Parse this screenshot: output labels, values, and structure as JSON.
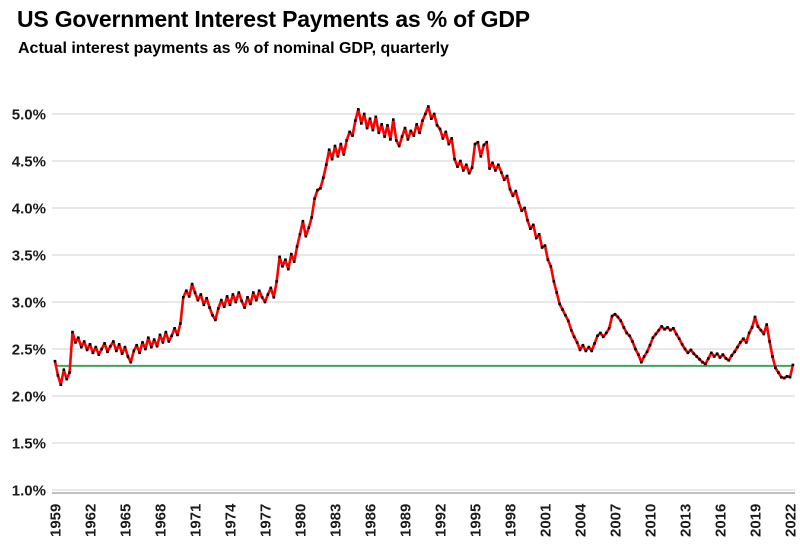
{
  "header": {
    "title": "US Government Interest Payments as % of GDP",
    "subtitle": "Actual interest payments as % of nominal GDP, quarterly"
  },
  "chart_data": {
    "type": "line",
    "title": "US Government Interest Payments as % of GDP",
    "subtitle": "Actual interest payments as % of nominal GDP, quarterly",
    "frequency": "quarterly",
    "unit": "percent of nominal GDP",
    "x_start": 1959,
    "x_step": 0.25,
    "x_tick_years": [
      1959,
      1962,
      1965,
      1968,
      1971,
      1974,
      1977,
      1980,
      1983,
      1986,
      1989,
      1992,
      1995,
      1998,
      2001,
      2004,
      2007,
      2010,
      2013,
      2016,
      2019,
      2022
    ],
    "y_ticks": [
      5.0,
      4.5,
      4.0,
      3.5,
      3.0,
      2.5,
      2.0,
      1.5,
      1.0
    ],
    "y_tick_labels": [
      "5.0%",
      "4.5%",
      "4.0%",
      "3.5%",
      "3.0%",
      "2.5%",
      "2.0%",
      "1.5%",
      "1.0%"
    ],
    "ylim": [
      1.0,
      5.0
    ],
    "grid": true,
    "gridline_color": "#d9d9d9",
    "axis_line_color": "#ababab",
    "label_color": "#1a1a1a",
    "reference_line": {
      "value": 2.32,
      "color": "#3fa45e"
    },
    "series": [
      {
        "name": "Actual interest payments as % of nominal GDP",
        "color": "#ff0000",
        "marker_color": "#000000",
        "values": [
          2.37,
          2.22,
          2.12,
          2.28,
          2.18,
          2.25,
          2.68,
          2.57,
          2.62,
          2.52,
          2.58,
          2.49,
          2.55,
          2.46,
          2.52,
          2.44,
          2.5,
          2.56,
          2.47,
          2.53,
          2.58,
          2.48,
          2.55,
          2.45,
          2.52,
          2.42,
          2.36,
          2.48,
          2.54,
          2.46,
          2.57,
          2.5,
          2.62,
          2.52,
          2.6,
          2.53,
          2.65,
          2.57,
          2.68,
          2.58,
          2.64,
          2.72,
          2.65,
          2.77,
          3.05,
          3.12,
          3.06,
          3.19,
          3.1,
          3.02,
          3.08,
          2.97,
          3.04,
          2.94,
          2.86,
          2.81,
          2.93,
          3.02,
          2.95,
          3.06,
          2.97,
          3.08,
          3.0,
          3.1,
          3.01,
          2.94,
          3.05,
          2.98,
          3.1,
          3.02,
          3.12,
          3.05,
          3.0,
          3.08,
          3.15,
          3.05,
          3.22,
          3.48,
          3.38,
          3.45,
          3.35,
          3.51,
          3.43,
          3.59,
          3.72,
          3.86,
          3.7,
          3.79,
          3.9,
          4.1,
          4.19,
          4.21,
          4.32,
          4.46,
          4.62,
          4.52,
          4.66,
          4.55,
          4.68,
          4.57,
          4.72,
          4.81,
          4.77,
          4.93,
          5.05,
          4.9,
          5.0,
          4.85,
          4.95,
          4.83,
          4.97,
          4.8,
          4.89,
          4.76,
          4.88,
          4.73,
          4.94,
          4.72,
          4.66,
          4.76,
          4.85,
          4.73,
          4.82,
          4.77,
          4.89,
          4.8,
          4.93,
          5.0,
          5.08,
          4.95,
          5.0,
          4.88,
          4.84,
          4.74,
          4.81,
          4.68,
          4.74,
          4.52,
          4.44,
          4.5,
          4.4,
          4.46,
          4.37,
          4.43,
          4.68,
          4.7,
          4.55,
          4.67,
          4.7,
          4.42,
          4.48,
          4.4,
          4.46,
          4.38,
          4.3,
          4.34,
          4.2,
          4.13,
          4.18,
          4.06,
          3.97,
          4.0,
          3.87,
          3.78,
          3.82,
          3.68,
          3.72,
          3.58,
          3.6,
          3.45,
          3.38,
          3.22,
          3.1,
          2.98,
          2.92,
          2.86,
          2.8,
          2.7,
          2.63,
          2.57,
          2.49,
          2.54,
          2.48,
          2.52,
          2.48,
          2.56,
          2.64,
          2.67,
          2.63,
          2.67,
          2.72,
          2.85,
          2.87,
          2.84,
          2.8,
          2.73,
          2.67,
          2.64,
          2.58,
          2.5,
          2.44,
          2.36,
          2.42,
          2.47,
          2.54,
          2.62,
          2.66,
          2.7,
          2.74,
          2.71,
          2.73,
          2.7,
          2.72,
          2.66,
          2.61,
          2.55,
          2.5,
          2.46,
          2.49,
          2.45,
          2.42,
          2.39,
          2.36,
          2.34,
          2.4,
          2.46,
          2.42,
          2.45,
          2.41,
          2.44,
          2.4,
          2.38,
          2.43,
          2.47,
          2.52,
          2.57,
          2.61,
          2.57,
          2.67,
          2.73,
          2.84,
          2.74,
          2.7,
          2.66,
          2.76,
          2.58,
          2.42,
          2.3,
          2.25,
          2.2,
          2.19,
          2.21,
          2.2,
          2.33
        ]
      }
    ]
  }
}
